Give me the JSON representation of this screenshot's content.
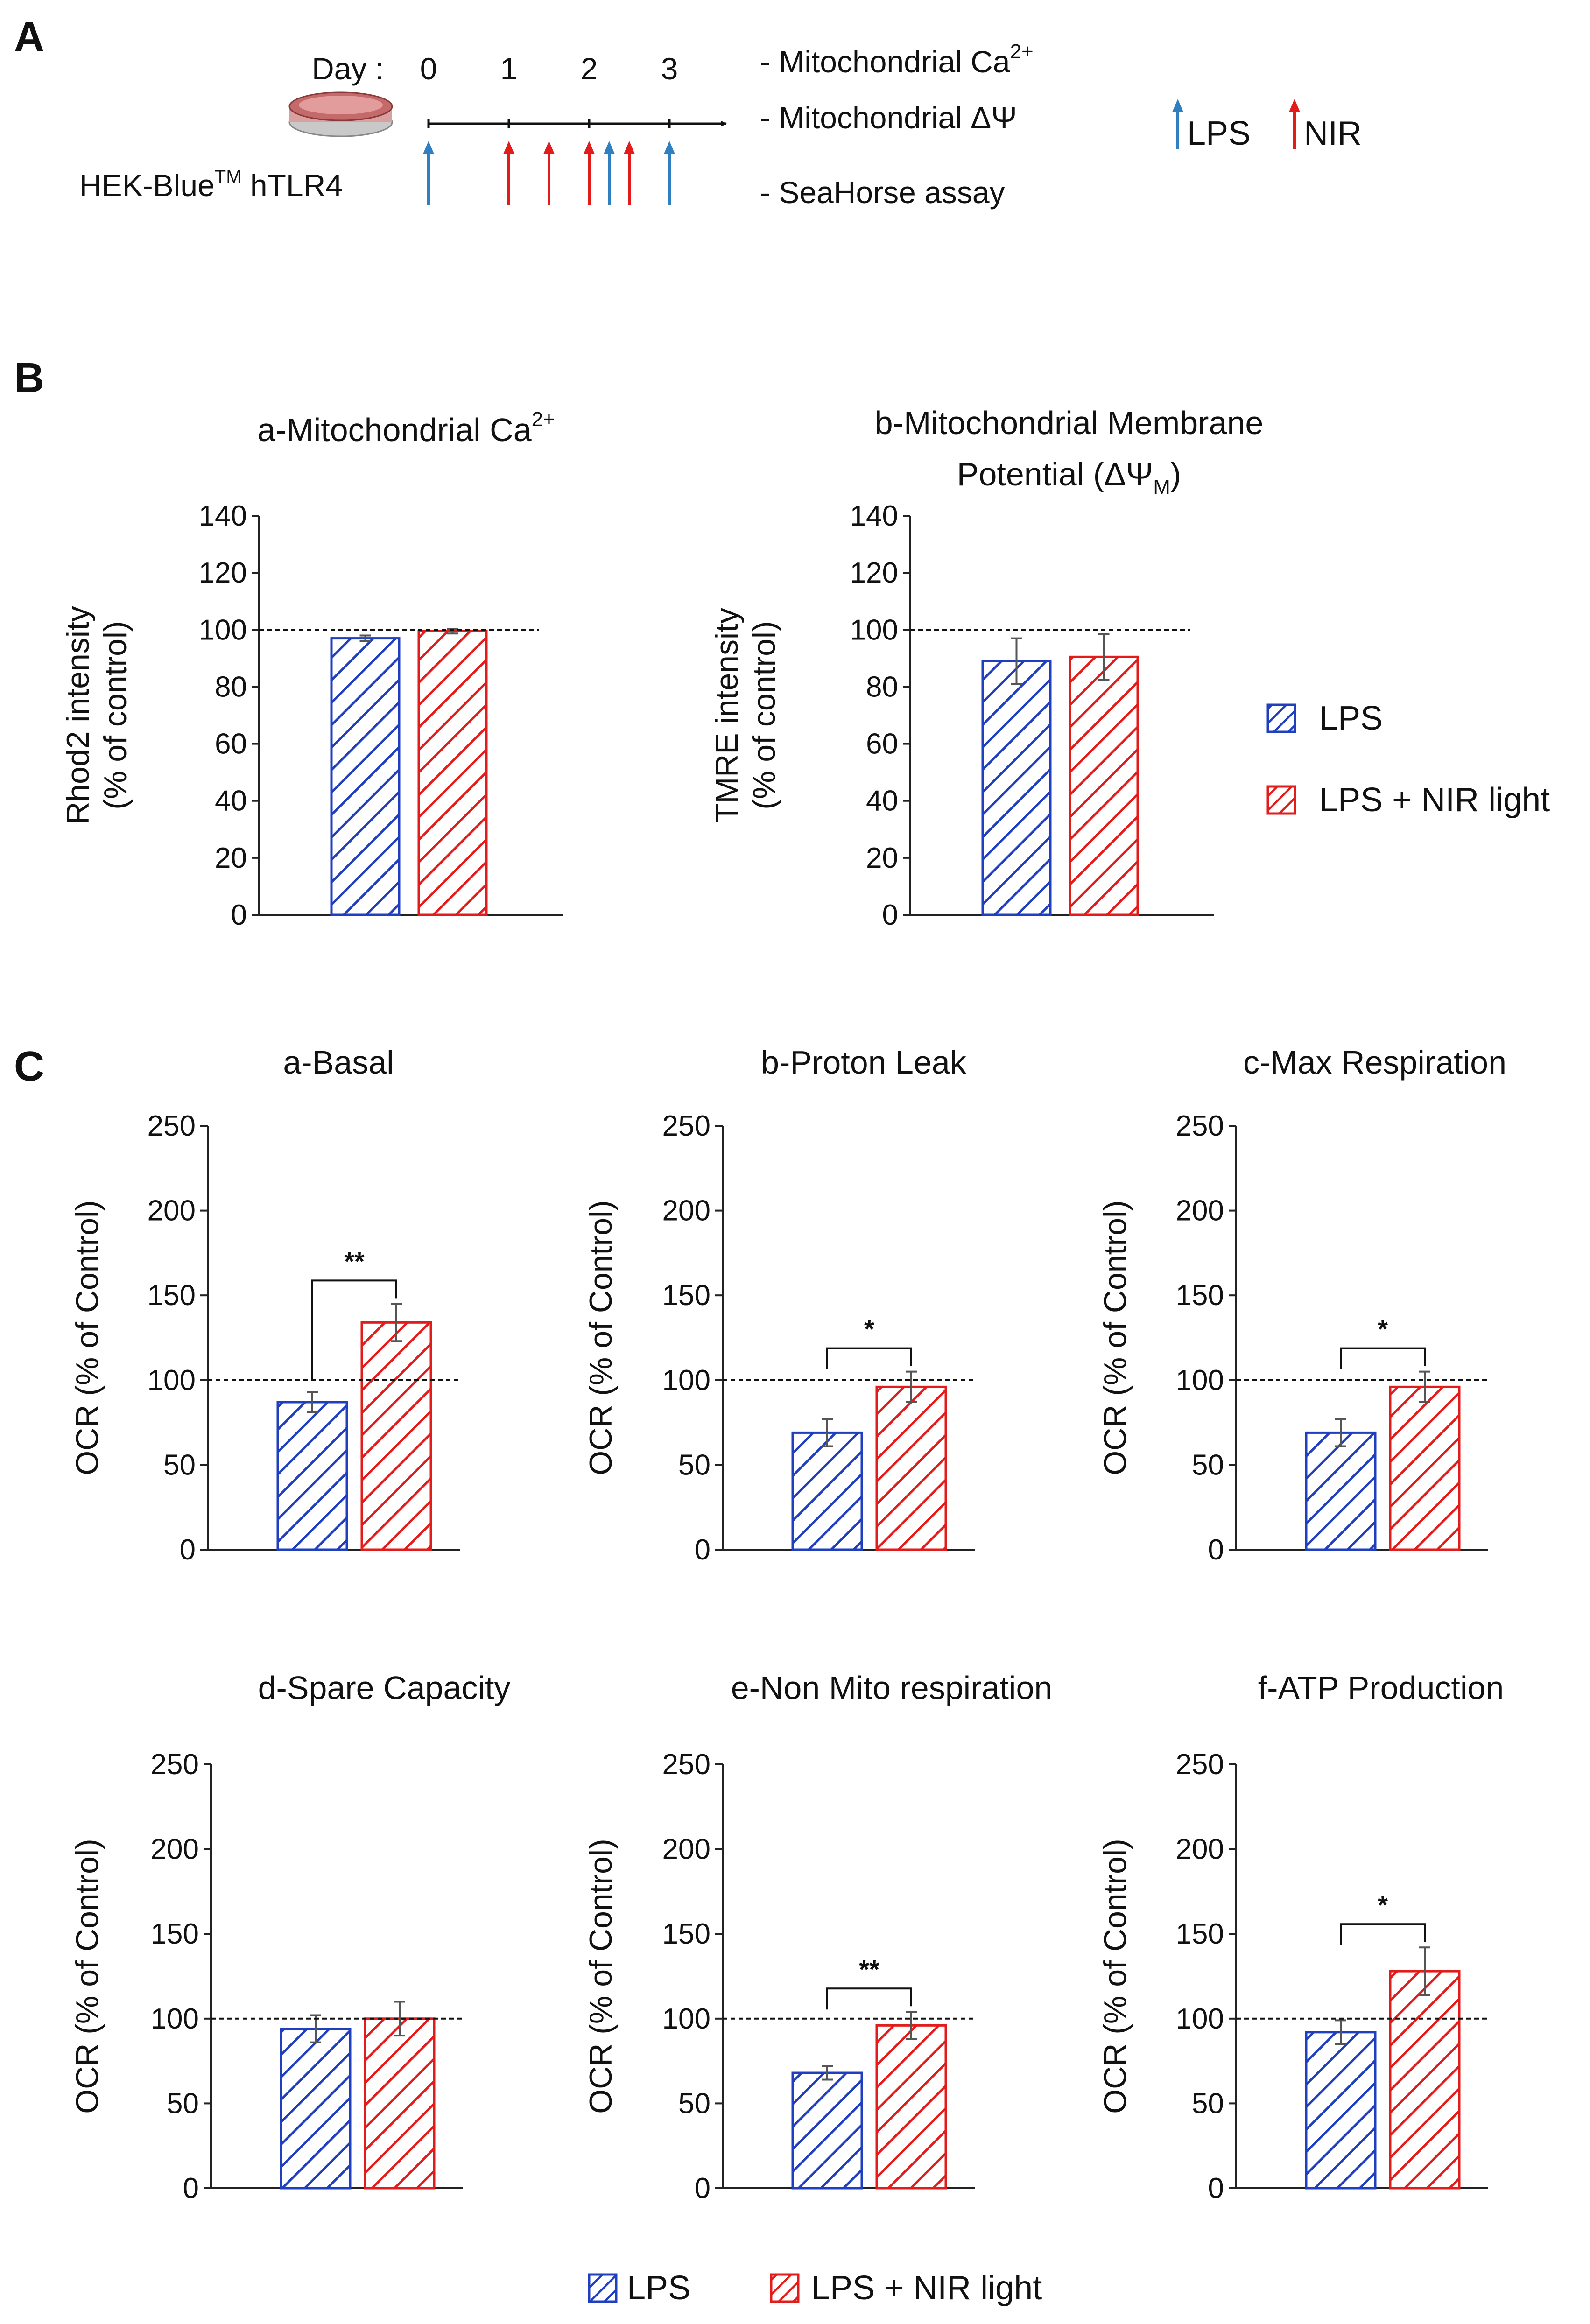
{
  "colors": {
    "lps": "#1f3fbf",
    "nir": "#e21b1b",
    "arrow_lps": "#2f7fc1",
    "arrow_nir": "#e21b1b"
  },
  "panel_a": {
    "letter": "A",
    "day_label": "Day :",
    "days": [
      "0",
      "1",
      "2",
      "3"
    ],
    "cell_line": "HEK-Blue",
    "cell_line_tm": "TM",
    "cell_line_suffix": " hTLR4",
    "readouts": [
      {
        "dash": "-",
        "text": "Mitochondrial Ca",
        "sup": "2+"
      },
      {
        "dash": "-",
        "text": "Mitochondrial ΔΨ",
        "sup": ""
      },
      {
        "dash": "-",
        "text": "SeaHorse assay",
        "sup": ""
      }
    ],
    "legend": {
      "lps": "LPS",
      "nir": "NIR"
    },
    "lps_arrow_days": [
      0,
      2.25,
      3
    ],
    "nir_arrow_days": [
      1,
      1.5,
      2,
      2.5
    ]
  },
  "panel_b": {
    "letter": "B"
  },
  "panel_c": {
    "letter": "C"
  },
  "legend_labels": {
    "lps": "LPS",
    "nir": "LPS + NIR light"
  },
  "chart_data": [
    {
      "id": "B-a",
      "type": "bar",
      "title": "a-Mitochondrial Ca",
      "title_sup": "2+",
      "ylabel_lines": [
        "Rhod2 intensity",
        "(% of control)"
      ],
      "categories": [
        "LPS",
        "LPS + NIR light"
      ],
      "values": [
        97,
        99.5
      ],
      "errors": [
        1,
        0.8
      ],
      "ylim": [
        0,
        140
      ],
      "yticks": [
        0,
        20,
        40,
        60,
        80,
        100,
        120,
        140
      ],
      "reference_line": 100
    },
    {
      "id": "B-b",
      "type": "bar",
      "title": "b-Mitochondrial Membrane",
      "title_line2": "Potential (ΔΨ",
      "title_sub": "M",
      "title_close": ")",
      "ylabel_lines": [
        "TMRE intensity",
        "(% of control)"
      ],
      "categories": [
        "LPS",
        "LPS + NIR light"
      ],
      "values": [
        89,
        90.5
      ],
      "errors": [
        8,
        8
      ],
      "ylim": [
        0,
        140
      ],
      "yticks": [
        0,
        20,
        40,
        60,
        80,
        100,
        120,
        140
      ],
      "reference_line": 100
    },
    {
      "id": "C-a",
      "type": "bar",
      "title": "a-Basal",
      "ylabel": "OCR (% of Control)",
      "categories": [
        "LPS",
        "LPS + NIR light"
      ],
      "values": [
        87,
        134
      ],
      "errors": [
        6,
        11
      ],
      "ylim": [
        0,
        250
      ],
      "yticks": [
        0,
        50,
        100,
        150,
        200,
        250
      ],
      "reference_line": 100,
      "significance": "**"
    },
    {
      "id": "C-b",
      "type": "bar",
      "title": "b-Proton Leak",
      "ylabel": "OCR (% of Control)",
      "categories": [
        "LPS",
        "LPS + NIR light"
      ],
      "values": [
        69,
        96
      ],
      "errors": [
        8,
        9
      ],
      "ylim": [
        0,
        250
      ],
      "yticks": [
        0,
        50,
        100,
        150,
        200,
        250
      ],
      "reference_line": 100,
      "significance": "*"
    },
    {
      "id": "C-c",
      "type": "bar",
      "title": "c-Max Respiration",
      "ylabel": "OCR (% of Control)",
      "categories": [
        "LPS",
        "LPS + NIR light"
      ],
      "values": [
        69,
        96
      ],
      "errors": [
        8,
        9
      ],
      "ylim": [
        0,
        250
      ],
      "yticks": [
        0,
        50,
        100,
        150,
        200,
        250
      ],
      "reference_line": 100,
      "significance": "*"
    },
    {
      "id": "C-d",
      "type": "bar",
      "title": "d-Spare Capacity",
      "ylabel": "OCR (% of Control)",
      "categories": [
        "LPS",
        "LPS + NIR light"
      ],
      "values": [
        94,
        100
      ],
      "errors": [
        8,
        10
      ],
      "ylim": [
        0,
        250
      ],
      "yticks": [
        0,
        50,
        100,
        150,
        200,
        250
      ],
      "reference_line": 100
    },
    {
      "id": "C-e",
      "type": "bar",
      "title": "e-Non Mito respiration",
      "ylabel": "OCR (% of Control)",
      "categories": [
        "LPS",
        "LPS + NIR light"
      ],
      "values": [
        68,
        96
      ],
      "errors": [
        4,
        8
      ],
      "ylim": [
        0,
        250
      ],
      "yticks": [
        0,
        50,
        100,
        150,
        200,
        250
      ],
      "reference_line": 100,
      "significance": "**"
    },
    {
      "id": "C-f",
      "type": "bar",
      "title": "f-ATP Production",
      "ylabel": "OCR (% of Control)",
      "categories": [
        "LPS",
        "LPS + NIR light"
      ],
      "values": [
        92,
        128
      ],
      "errors": [
        7,
        14
      ],
      "ylim": [
        0,
        250
      ],
      "yticks": [
        0,
        50,
        100,
        150,
        200,
        250
      ],
      "reference_line": 100,
      "significance": "*"
    }
  ]
}
